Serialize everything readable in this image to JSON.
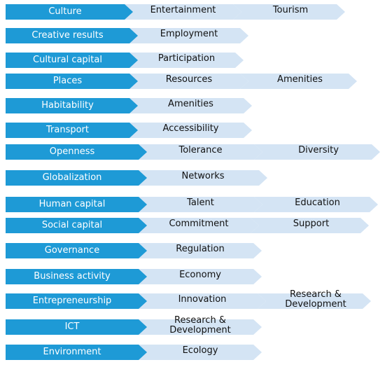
{
  "rows": [
    {
      "label": "Culture",
      "items": [
        "Entertainment",
        "Tourism"
      ]
    },
    {
      "label": "Creative results",
      "items": [
        "Employment"
      ]
    },
    {
      "label": "Cultural capital",
      "items": [
        "Participation"
      ]
    },
    {
      "label": "Places",
      "items": [
        "Resources",
        "Amenities"
      ]
    },
    {
      "label": "Habitability",
      "items": [
        "Amenities"
      ]
    },
    {
      "label": "Transport",
      "items": [
        "Accessibility"
      ]
    },
    {
      "label": "Openness",
      "items": [
        "Tolerance",
        "Diversity"
      ]
    },
    {
      "label": "Globalization",
      "items": [
        "Networks"
      ]
    },
    {
      "label": "Human capital",
      "items": [
        "Talent",
        "Education"
      ]
    },
    {
      "label": "Social capital",
      "items": [
        "Commitment",
        "Support"
      ]
    },
    {
      "label": "Governance",
      "items": [
        "Regulation"
      ]
    },
    {
      "label": "Business activity",
      "items": [
        "Economy"
      ]
    },
    {
      "label": "Entrepreneurship",
      "items": [
        "Innovation",
        "Research & Development"
      ]
    },
    {
      "label": "ICT",
      "items": [
        "Research & Development"
      ]
    },
    {
      "label": "Environment",
      "items": [
        "Ecology"
      ]
    }
  ]
}
